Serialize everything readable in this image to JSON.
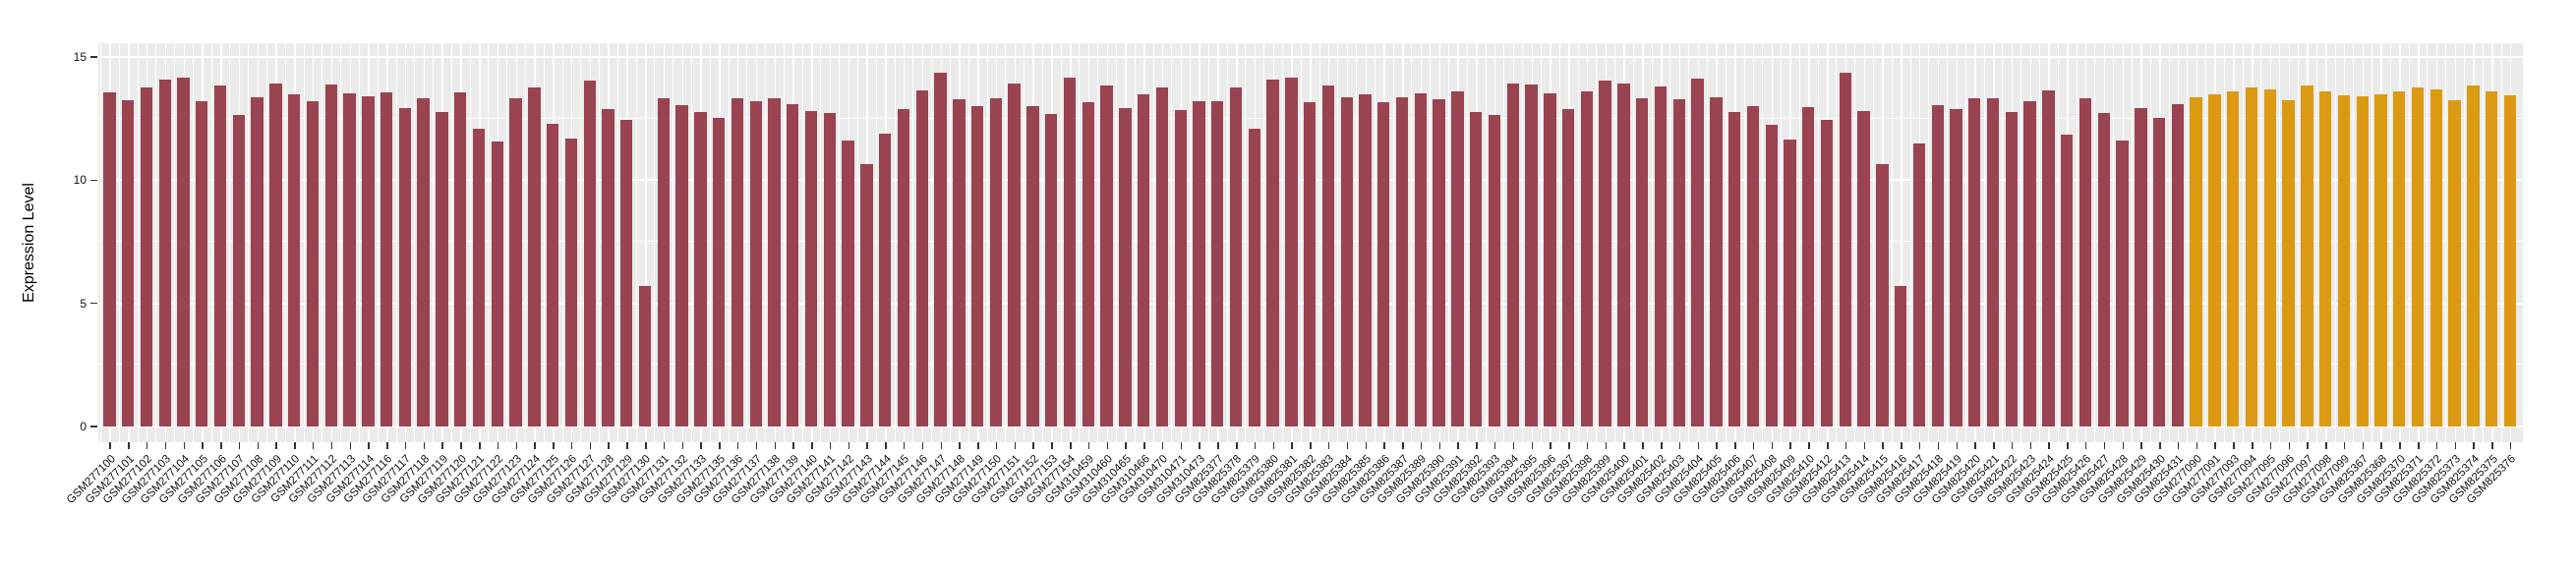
{
  "chart_data": {
    "type": "bar",
    "title": "",
    "xlabel": "",
    "ylabel": "Expression Level",
    "ylim": [
      0,
      15
    ],
    "yticks": [
      0,
      5,
      10,
      15
    ],
    "ytick_labels": [
      "0",
      "5",
      "10",
      "15"
    ],
    "minor_yticks": [
      2.5,
      7.5,
      12.5
    ],
    "grid": true,
    "legend_position": "none",
    "panel_bg": "#EBEBEB",
    "gridline_color": "#FFFFFF",
    "group_colors": [
      "#9A4351",
      "#DC9A12"
    ],
    "bars": [
      {
        "label": "GSM277100",
        "value": 13.58,
        "group": 0
      },
      {
        "label": "GSM277101",
        "value": 13.24,
        "group": 0
      },
      {
        "label": "GSM277102",
        "value": 13.77,
        "group": 0
      },
      {
        "label": "GSM277103",
        "value": 14.09,
        "group": 0
      },
      {
        "label": "GSM277104",
        "value": 14.16,
        "group": 0
      },
      {
        "label": "GSM277105",
        "value": 13.19,
        "group": 0
      },
      {
        "label": "GSM277106",
        "value": 13.84,
        "group": 0
      },
      {
        "label": "GSM277107",
        "value": 12.64,
        "group": 0
      },
      {
        "label": "GSM277108",
        "value": 13.36,
        "group": 0
      },
      {
        "label": "GSM277109",
        "value": 13.92,
        "group": 0
      },
      {
        "label": "GSM277110",
        "value": 13.49,
        "group": 0
      },
      {
        "label": "GSM277111",
        "value": 13.19,
        "group": 0
      },
      {
        "label": "GSM277112",
        "value": 13.87,
        "group": 0
      },
      {
        "label": "GSM277113",
        "value": 13.54,
        "group": 0
      },
      {
        "label": "GSM277114",
        "value": 13.39,
        "group": 0
      },
      {
        "label": "GSM277116",
        "value": 13.55,
        "group": 0
      },
      {
        "label": "GSM277117",
        "value": 12.92,
        "group": 0
      },
      {
        "label": "GSM277118",
        "value": 13.31,
        "group": 0
      },
      {
        "label": "GSM277119",
        "value": 12.76,
        "group": 0
      },
      {
        "label": "GSM277120",
        "value": 13.58,
        "group": 0
      },
      {
        "label": "GSM277121",
        "value": 12.1,
        "group": 0
      },
      {
        "label": "GSM277122",
        "value": 11.55,
        "group": 0
      },
      {
        "label": "GSM277123",
        "value": 13.33,
        "group": 0
      },
      {
        "label": "GSM277124",
        "value": 13.77,
        "group": 0
      },
      {
        "label": "GSM277125",
        "value": 12.27,
        "group": 0
      },
      {
        "label": "GSM277126",
        "value": 11.67,
        "group": 0
      },
      {
        "label": "GSM277127",
        "value": 14.05,
        "group": 0
      },
      {
        "label": "GSM277128",
        "value": 12.88,
        "group": 0
      },
      {
        "label": "GSM277129",
        "value": 12.46,
        "group": 0
      },
      {
        "label": "GSM277130",
        "value": 5.7,
        "group": 0
      },
      {
        "label": "GSM277131",
        "value": 13.33,
        "group": 0
      },
      {
        "label": "GSM277132",
        "value": 13.03,
        "group": 0
      },
      {
        "label": "GSM277133",
        "value": 12.76,
        "group": 0
      },
      {
        "label": "GSM277135",
        "value": 12.52,
        "group": 0
      },
      {
        "label": "GSM277136",
        "value": 13.33,
        "group": 0
      },
      {
        "label": "GSM277137",
        "value": 13.19,
        "group": 0
      },
      {
        "label": "GSM277138",
        "value": 13.33,
        "group": 0
      },
      {
        "label": "GSM277139",
        "value": 13.1,
        "group": 0
      },
      {
        "label": "GSM277140",
        "value": 12.82,
        "group": 0
      },
      {
        "label": "GSM277141",
        "value": 12.71,
        "group": 0
      },
      {
        "label": "GSM277142",
        "value": 11.62,
        "group": 0
      },
      {
        "label": "GSM277143",
        "value": 10.66,
        "group": 0
      },
      {
        "label": "GSM277144",
        "value": 11.89,
        "group": 0
      },
      {
        "label": "GSM277145",
        "value": 12.88,
        "group": 0
      },
      {
        "label": "GSM277146",
        "value": 13.66,
        "group": 0
      },
      {
        "label": "GSM277147",
        "value": 14.35,
        "group": 0
      },
      {
        "label": "GSM277148",
        "value": 13.28,
        "group": 0
      },
      {
        "label": "GSM277149",
        "value": 12.99,
        "group": 0
      },
      {
        "label": "GSM277150",
        "value": 13.33,
        "group": 0
      },
      {
        "label": "GSM277151",
        "value": 13.92,
        "group": 0
      },
      {
        "label": "GSM277152",
        "value": 12.99,
        "group": 0
      },
      {
        "label": "GSM277153",
        "value": 12.68,
        "group": 0
      },
      {
        "label": "GSM277154",
        "value": 14.15,
        "group": 0
      },
      {
        "label": "GSM310459",
        "value": 13.16,
        "group": 0
      },
      {
        "label": "GSM310460",
        "value": 13.83,
        "group": 0
      },
      {
        "label": "GSM310465",
        "value": 12.92,
        "group": 0
      },
      {
        "label": "GSM310466",
        "value": 13.48,
        "group": 0
      },
      {
        "label": "GSM310470",
        "value": 13.77,
        "group": 0
      },
      {
        "label": "GSM310471",
        "value": 12.84,
        "group": 0
      },
      {
        "label": "GSM310473",
        "value": 13.21,
        "group": 0
      },
      {
        "label": "GSM825377",
        "value": 13.21,
        "group": 0
      },
      {
        "label": "GSM825378",
        "value": 13.77,
        "group": 0
      },
      {
        "label": "GSM825379",
        "value": 12.1,
        "group": 0
      },
      {
        "label": "GSM825380",
        "value": 14.08,
        "group": 0
      },
      {
        "label": "GSM825381",
        "value": 14.17,
        "group": 0
      },
      {
        "label": "GSM825382",
        "value": 13.16,
        "group": 0
      },
      {
        "label": "GSM825383",
        "value": 13.83,
        "group": 0
      },
      {
        "label": "GSM825384",
        "value": 13.35,
        "group": 0
      },
      {
        "label": "GSM825385",
        "value": 13.48,
        "group": 0
      },
      {
        "label": "GSM825386",
        "value": 13.16,
        "group": 0
      },
      {
        "label": "GSM825387",
        "value": 13.35,
        "group": 0
      },
      {
        "label": "GSM825389",
        "value": 13.53,
        "group": 0
      },
      {
        "label": "GSM825390",
        "value": 13.3,
        "group": 0
      },
      {
        "label": "GSM825391",
        "value": 13.59,
        "group": 0
      },
      {
        "label": "GSM825392",
        "value": 12.76,
        "group": 0
      },
      {
        "label": "GSM825393",
        "value": 12.66,
        "group": 0
      },
      {
        "label": "GSM825394",
        "value": 13.94,
        "group": 0
      },
      {
        "label": "GSM825395",
        "value": 13.88,
        "group": 0
      },
      {
        "label": "GSM825396",
        "value": 13.53,
        "group": 0
      },
      {
        "label": "GSM825397",
        "value": 12.9,
        "group": 0
      },
      {
        "label": "GSM825398",
        "value": 13.62,
        "group": 0
      },
      {
        "label": "GSM825399",
        "value": 14.04,
        "group": 0
      },
      {
        "label": "GSM825400",
        "value": 13.91,
        "group": 0
      },
      {
        "label": "GSM825401",
        "value": 13.32,
        "group": 0
      },
      {
        "label": "GSM825402",
        "value": 13.79,
        "group": 0
      },
      {
        "label": "GSM825403",
        "value": 13.27,
        "group": 0
      },
      {
        "label": "GSM825404",
        "value": 14.11,
        "group": 0
      },
      {
        "label": "GSM825405",
        "value": 13.36,
        "group": 0
      },
      {
        "label": "GSM825406",
        "value": 12.76,
        "group": 0
      },
      {
        "label": "GSM825407",
        "value": 12.99,
        "group": 0
      },
      {
        "label": "GSM825408",
        "value": 12.23,
        "group": 0
      },
      {
        "label": "GSM825409",
        "value": 11.63,
        "group": 0
      },
      {
        "label": "GSM825410",
        "value": 12.98,
        "group": 0
      },
      {
        "label": "GSM825412",
        "value": 12.43,
        "group": 0
      },
      {
        "label": "GSM825413",
        "value": 14.35,
        "group": 0
      },
      {
        "label": "GSM825414",
        "value": 12.79,
        "group": 0
      },
      {
        "label": "GSM825415",
        "value": 10.66,
        "group": 0
      },
      {
        "label": "GSM825416",
        "value": 5.7,
        "group": 0
      },
      {
        "label": "GSM825417",
        "value": 11.5,
        "group": 0
      },
      {
        "label": "GSM825418",
        "value": 13.03,
        "group": 0
      },
      {
        "label": "GSM825419",
        "value": 12.88,
        "group": 0
      },
      {
        "label": "GSM825420",
        "value": 13.32,
        "group": 0
      },
      {
        "label": "GSM825421",
        "value": 13.32,
        "group": 0
      },
      {
        "label": "GSM825422",
        "value": 12.76,
        "group": 0
      },
      {
        "label": "GSM825423",
        "value": 13.21,
        "group": 0
      },
      {
        "label": "GSM825424",
        "value": 13.65,
        "group": 0
      },
      {
        "label": "GSM825425",
        "value": 11.86,
        "group": 0
      },
      {
        "label": "GSM825426",
        "value": 13.32,
        "group": 0
      },
      {
        "label": "GSM825427",
        "value": 12.72,
        "group": 0
      },
      {
        "label": "GSM825428",
        "value": 11.6,
        "group": 0
      },
      {
        "label": "GSM825429",
        "value": 12.92,
        "group": 0
      },
      {
        "label": "GSM825430",
        "value": 12.52,
        "group": 0
      },
      {
        "label": "GSM825431",
        "value": 13.08,
        "group": 0
      },
      {
        "label": "GSM277090",
        "value": 13.37,
        "group": 1
      },
      {
        "label": "GSM277091",
        "value": 13.49,
        "group": 1
      },
      {
        "label": "GSM277093",
        "value": 13.61,
        "group": 1
      },
      {
        "label": "GSM277094",
        "value": 13.77,
        "group": 1
      },
      {
        "label": "GSM277095",
        "value": 13.69,
        "group": 1
      },
      {
        "label": "GSM277096",
        "value": 13.24,
        "group": 1
      },
      {
        "label": "GSM277097",
        "value": 13.84,
        "group": 1
      },
      {
        "label": "GSM277098",
        "value": 13.59,
        "group": 1
      },
      {
        "label": "GSM277099",
        "value": 13.45,
        "group": 1
      },
      {
        "label": "GSM825367",
        "value": 13.39,
        "group": 1
      },
      {
        "label": "GSM825368",
        "value": 13.49,
        "group": 1
      },
      {
        "label": "GSM825370",
        "value": 13.61,
        "group": 1
      },
      {
        "label": "GSM825371",
        "value": 13.77,
        "group": 1
      },
      {
        "label": "GSM825372",
        "value": 13.7,
        "group": 1
      },
      {
        "label": "GSM825373",
        "value": 13.24,
        "group": 1
      },
      {
        "label": "GSM825374",
        "value": 13.86,
        "group": 1
      },
      {
        "label": "GSM825375",
        "value": 13.59,
        "group": 1
      },
      {
        "label": "GSM825376",
        "value": 13.45,
        "group": 1
      }
    ]
  }
}
